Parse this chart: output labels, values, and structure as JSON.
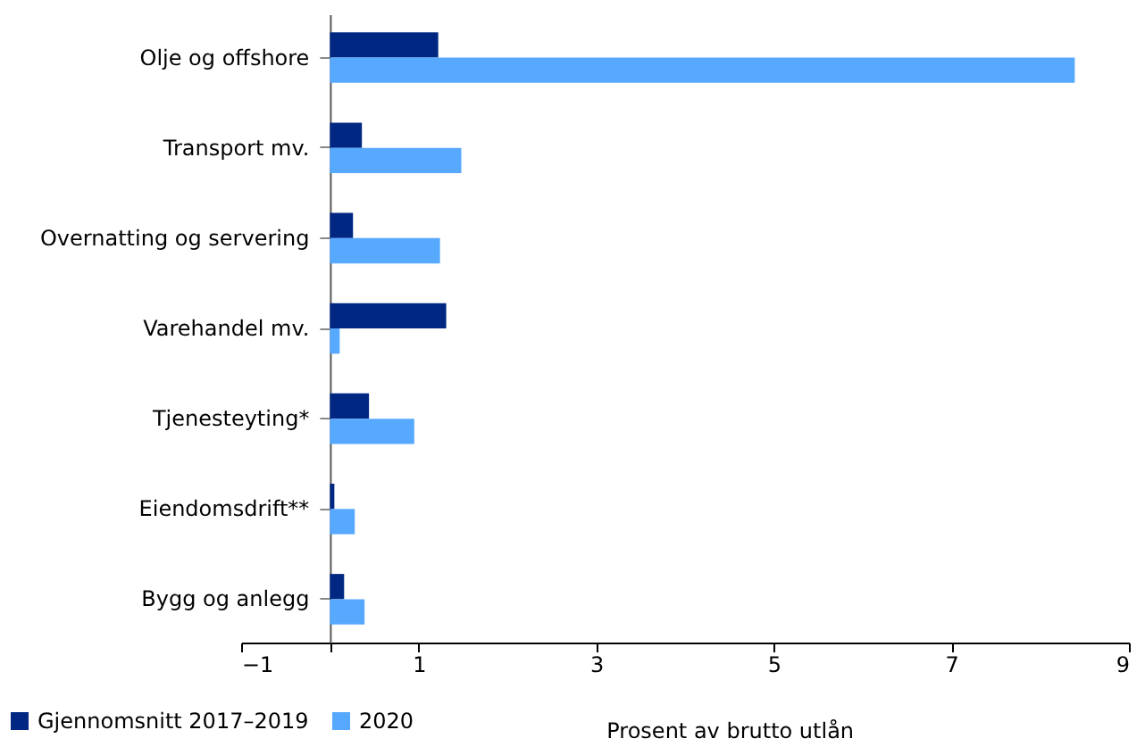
{
  "chart_data": {
    "type": "bar",
    "orientation": "horizontal",
    "xlabel": "Prosent av brutto utlån",
    "categories": [
      "Olje og offshore",
      "Transport mv.",
      "Overnatting og servering",
      "Varehandel mv.",
      "Tjenesteyting*",
      "Eiendomsdrift**",
      "Bygg og anlegg"
    ],
    "series": [
      {
        "name": "Gjennomsnitt 2017–2019",
        "color": "#002882",
        "values": [
          1.22,
          0.36,
          0.26,
          1.31,
          0.44,
          0.05,
          0.16
        ]
      },
      {
        "name": "2020",
        "color": "#57a9ff",
        "values": [
          8.39,
          1.48,
          1.24,
          0.11,
          0.95,
          0.28,
          0.39
        ]
      }
    ],
    "xlim": [
      -1,
      9
    ],
    "xticks": [
      -1,
      {
        "value": 0,
        "label": null
      },
      1,
      3,
      5,
      7,
      9
    ],
    "grid": false,
    "legend": "bottom left"
  }
}
